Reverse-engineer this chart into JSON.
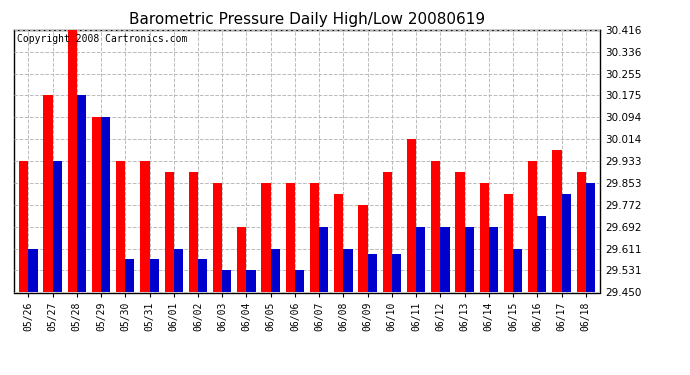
{
  "title": "Barometric Pressure Daily High/Low 20080619",
  "copyright": "Copyright 2008 Cartronics.com",
  "dates": [
    "05/26",
    "05/27",
    "05/28",
    "05/29",
    "05/30",
    "05/31",
    "06/01",
    "06/02",
    "06/03",
    "06/04",
    "06/05",
    "06/06",
    "06/07",
    "06/08",
    "06/09",
    "06/10",
    "06/11",
    "06/12",
    "06/13",
    "06/14",
    "06/15",
    "06/16",
    "06/17",
    "06/18"
  ],
  "highs": [
    29.933,
    30.175,
    30.416,
    30.094,
    29.933,
    29.933,
    29.893,
    29.893,
    29.853,
    29.692,
    29.853,
    29.853,
    29.853,
    29.812,
    29.772,
    29.893,
    30.014,
    29.933,
    29.893,
    29.853,
    29.812,
    29.933,
    29.973,
    29.893
  ],
  "lows": [
    29.611,
    29.933,
    30.175,
    30.094,
    29.572,
    29.572,
    29.611,
    29.572,
    29.531,
    29.531,
    29.611,
    29.531,
    29.692,
    29.611,
    29.591,
    29.591,
    29.692,
    29.692,
    29.692,
    29.692,
    29.611,
    29.731,
    29.812,
    29.853
  ],
  "ymin": 29.45,
  "ymax": 30.416,
  "yticks": [
    29.45,
    29.531,
    29.611,
    29.692,
    29.772,
    29.853,
    29.933,
    30.014,
    30.094,
    30.175,
    30.255,
    30.336,
    30.416
  ],
  "bar_color_high": "#ff0000",
  "bar_color_low": "#0000cc",
  "background_color": "#ffffff",
  "title_fontsize": 11,
  "copyright_fontsize": 7,
  "bar_width": 0.38
}
